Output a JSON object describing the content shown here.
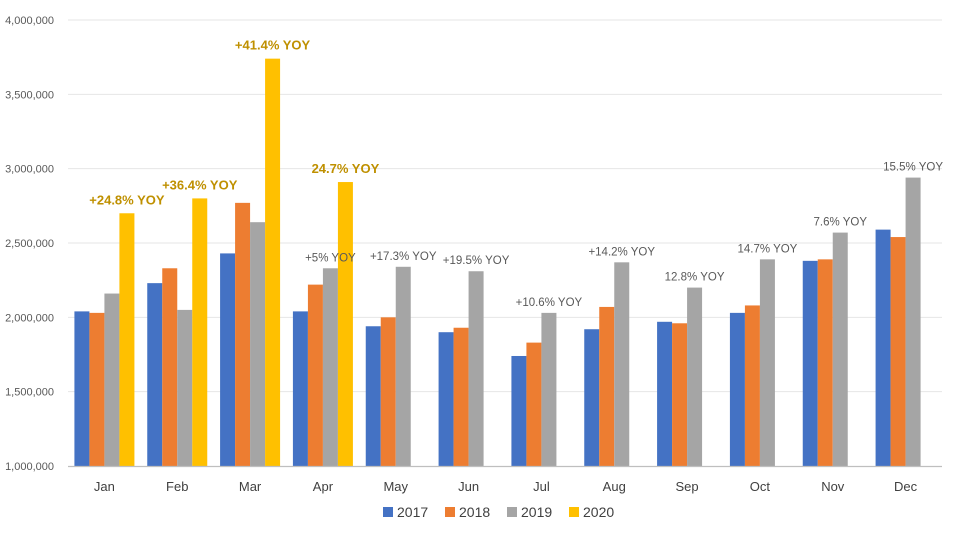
{
  "chart_data": {
    "type": "bar",
    "title": "",
    "categories": [
      "Jan",
      "Feb",
      "Mar",
      "Apr",
      "May",
      "Jun",
      "Jul",
      "Aug",
      "Sep",
      "Oct",
      "Nov",
      "Dec"
    ],
    "series": [
      {
        "name": "2017",
        "color": "#4472C4",
        "values": [
          2040000,
          2230000,
          2430000,
          2040000,
          1940000,
          1900000,
          1740000,
          1920000,
          1970000,
          2030000,
          2380000,
          2590000
        ]
      },
      {
        "name": "2018",
        "color": "#ED7D31",
        "values": [
          2030000,
          2330000,
          2770000,
          2220000,
          2000000,
          1930000,
          1830000,
          2070000,
          1960000,
          2080000,
          2390000,
          2540000
        ]
      },
      {
        "name": "2019",
        "color": "#A5A5A5",
        "values": [
          2160000,
          2050000,
          2640000,
          2330000,
          2340000,
          2310000,
          2030000,
          2370000,
          2200000,
          2390000,
          2570000,
          2940000
        ]
      },
      {
        "name": "2020",
        "color": "#FFC000",
        "values": [
          2700000,
          2800000,
          3740000,
          2910000,
          null,
          null,
          null,
          null,
          null,
          null,
          null,
          null
        ]
      }
    ],
    "annotations": [
      {
        "text": "+24.8% YOY",
        "category": "Jan",
        "series": "2020",
        "style": "bold"
      },
      {
        "text": "+36.4% YOY",
        "category": "Feb",
        "series": "2020",
        "style": "bold"
      },
      {
        "text": "+41.4% YOY",
        "category": "Mar",
        "series": "2020",
        "style": "bold"
      },
      {
        "text": "+5% YOY",
        "category": "Apr",
        "series": "2019",
        "style": "normal"
      },
      {
        "text": "24.7% YOY",
        "category": "Apr",
        "series": "2020",
        "style": "bold"
      },
      {
        "text": "+17.3% YOY",
        "category": "May",
        "series": "2019",
        "style": "normal"
      },
      {
        "text": "+19.5% YOY",
        "category": "Jun",
        "series": "2019",
        "style": "normal"
      },
      {
        "text": "+10.6% YOY",
        "category": "Jul",
        "series": "2019",
        "style": "normal"
      },
      {
        "text": "+14.2% YOY",
        "category": "Aug",
        "series": "2019",
        "style": "normal"
      },
      {
        "text": "12.8% YOY",
        "category": "Sep",
        "series": "2019",
        "style": "normal"
      },
      {
        "text": "14.7% YOY",
        "category": "Oct",
        "series": "2019",
        "style": "normal"
      },
      {
        "text": "7.6% YOY",
        "category": "Nov",
        "series": "2019",
        "style": "normal"
      },
      {
        "text": "15.5% YOY",
        "category": "Dec",
        "series": "2019",
        "style": "normal"
      }
    ],
    "annotation_bold_color": "#BF9000",
    "xlabel": "",
    "ylabel": "",
    "ylim": [
      1000000,
      4000000
    ],
    "yticks": [
      1000000,
      1500000,
      2000000,
      2500000,
      3000000,
      3500000,
      4000000
    ],
    "ytick_labels": [
      "1,000,000",
      "1,500,000",
      "2,000,000",
      "2,500,000",
      "3,000,000",
      "3,500,000",
      "4,000,000"
    ],
    "grid": true,
    "legend_position": "bottom"
  }
}
